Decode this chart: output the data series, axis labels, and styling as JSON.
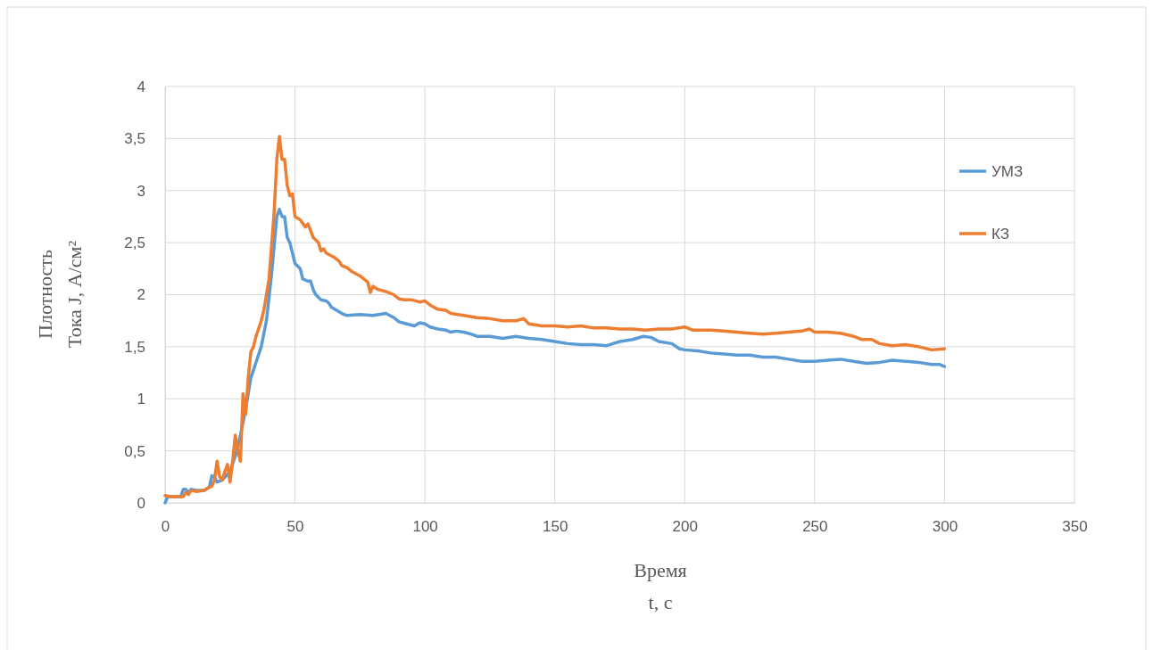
{
  "chart_data": {
    "type": "line",
    "xlabel": "Время\nt, c",
    "ylabel": "Плотность\nТока J, А/см²",
    "xlim": [
      0,
      350
    ],
    "xticks": [
      0,
      50,
      100,
      150,
      200,
      250,
      300,
      350
    ],
    "ylim": [
      0,
      4
    ],
    "yticks": [
      0,
      {
        "value": 0.5,
        "label": "0,5"
      },
      1,
      {
        "value": 1.5,
        "label": "1,5"
      },
      2,
      {
        "value": 2.5,
        "label": "2,5"
      },
      3,
      {
        "value": 3.5,
        "label": "3,5"
      },
      4
    ],
    "grid": true,
    "legend": "right",
    "marker": "none",
    "line_style": "solid",
    "series": [
      {
        "name": "УМЗ",
        "color": "#5b9bd5",
        "x": [
          0,
          1,
          6,
          7,
          8,
          9,
          10,
          12,
          15,
          17,
          18,
          19,
          20,
          22,
          25,
          27,
          29,
          31,
          33,
          35,
          37,
          39,
          41,
          43,
          44,
          45,
          46,
          47,
          48,
          50,
          52,
          53,
          55,
          56,
          57,
          58,
          60,
          62,
          63,
          64,
          66,
          68,
          70,
          75,
          80,
          85,
          88,
          90,
          93,
          96,
          98,
          100,
          102,
          105,
          108,
          110,
          112,
          115,
          118,
          120,
          125,
          130,
          135,
          140,
          145,
          150,
          155,
          160,
          165,
          170,
          175,
          180,
          184,
          187,
          190,
          195,
          198,
          200,
          205,
          210,
          215,
          220,
          225,
          230,
          235,
          240,
          245,
          250,
          255,
          260,
          265,
          270,
          275,
          280,
          285,
          290,
          295,
          298,
          300
        ],
        "values": [
          0,
          0.06,
          0.06,
          0.13,
          0.13,
          0.1,
          0.13,
          0.12,
          0.12,
          0.15,
          0.26,
          0.25,
          0.2,
          0.22,
          0.3,
          0.45,
          0.65,
          0.9,
          1.2,
          1.35,
          1.5,
          1.75,
          2.2,
          2.75,
          2.82,
          2.75,
          2.75,
          2.55,
          2.5,
          2.3,
          2.25,
          2.15,
          2.13,
          2.13,
          2.05,
          2,
          1.95,
          1.94,
          1.92,
          1.88,
          1.85,
          1.82,
          1.8,
          1.81,
          1.8,
          1.82,
          1.78,
          1.74,
          1.72,
          1.7,
          1.73,
          1.72,
          1.69,
          1.67,
          1.66,
          1.64,
          1.65,
          1.64,
          1.62,
          1.6,
          1.6,
          1.58,
          1.6,
          1.58,
          1.57,
          1.55,
          1.53,
          1.52,
          1.52,
          1.51,
          1.55,
          1.57,
          1.6,
          1.59,
          1.55,
          1.53,
          1.48,
          1.47,
          1.46,
          1.44,
          1.43,
          1.42,
          1.42,
          1.4,
          1.4,
          1.38,
          1.36,
          1.36,
          1.37,
          1.38,
          1.36,
          1.34,
          1.35,
          1.37,
          1.36,
          1.35,
          1.33,
          1.33,
          1.31
        ]
      },
      {
        "name": "КЗ",
        "color": "#ed7d31",
        "x": [
          0,
          2,
          7,
          8,
          9,
          10,
          12,
          15,
          17,
          18,
          19,
          20,
          21,
          22,
          23,
          24,
          25,
          26,
          27,
          28,
          29,
          30,
          31,
          32,
          33,
          34,
          35,
          37,
          38,
          40,
          42,
          43,
          44,
          45,
          46,
          47,
          48,
          49,
          50,
          52,
          54,
          55,
          57,
          59,
          60,
          61,
          62,
          65,
          67,
          68,
          70,
          72,
          75,
          78,
          79,
          80,
          82,
          85,
          88,
          90,
          92,
          95,
          98,
          100,
          102,
          105,
          108,
          110,
          115,
          120,
          125,
          130,
          135,
          138,
          140,
          145,
          150,
          155,
          160,
          165,
          170,
          175,
          180,
          185,
          190,
          195,
          200,
          203,
          210,
          215,
          220,
          225,
          230,
          235,
          240,
          245,
          248,
          250,
          255,
          260,
          265,
          268,
          272,
          275,
          280,
          285,
          290,
          295,
          300
        ],
        "values": [
          0.07,
          0.06,
          0.06,
          0.1,
          0.08,
          0.12,
          0.11,
          0.12,
          0.15,
          0.16,
          0.22,
          0.4,
          0.25,
          0.22,
          0.3,
          0.37,
          0.2,
          0.4,
          0.65,
          0.5,
          0.4,
          1.05,
          0.85,
          1.2,
          1.45,
          1.5,
          1.6,
          1.75,
          1.85,
          2.15,
          2.8,
          3.3,
          3.52,
          3.3,
          3.3,
          3.05,
          2.95,
          2.97,
          2.75,
          2.72,
          2.65,
          2.68,
          2.55,
          2.5,
          2.42,
          2.44,
          2.4,
          2.36,
          2.32,
          2.28,
          2.26,
          2.22,
          2.18,
          2.12,
          2.02,
          2.08,
          2.05,
          2.03,
          2,
          1.96,
          1.95,
          1.95,
          1.93,
          1.94,
          1.9,
          1.86,
          1.85,
          1.82,
          1.8,
          1.78,
          1.77,
          1.75,
          1.75,
          1.77,
          1.72,
          1.7,
          1.7,
          1.69,
          1.7,
          1.68,
          1.68,
          1.67,
          1.67,
          1.66,
          1.67,
          1.67,
          1.69,
          1.66,
          1.66,
          1.65,
          1.64,
          1.63,
          1.62,
          1.63,
          1.64,
          1.65,
          1.67,
          1.64,
          1.64,
          1.63,
          1.6,
          1.57,
          1.57,
          1.53,
          1.51,
          1.52,
          1.5,
          1.47,
          1.48
        ]
      }
    ]
  }
}
